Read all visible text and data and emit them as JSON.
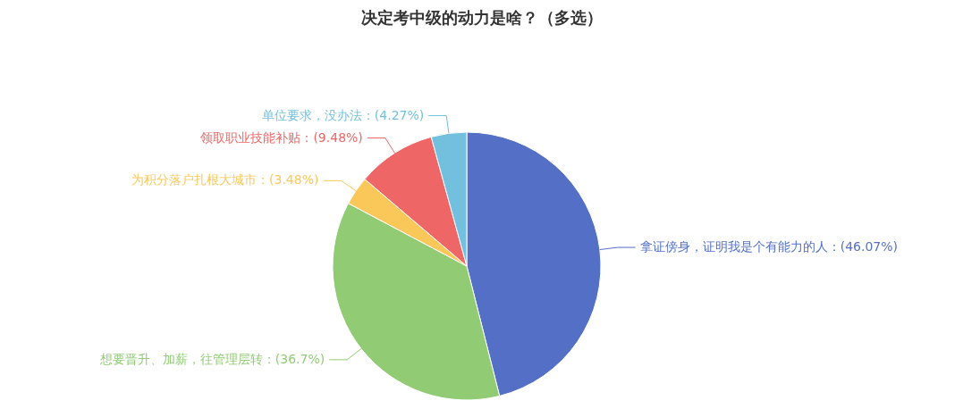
{
  "chart_data": {
    "type": "pie",
    "title": "决定考中级的动力是啥？（多选）",
    "categories": [
      "拿证傍身，证明我是个有能力的人",
      "想要晋升、加薪，往管理层转",
      "为积分落户扎根大城市",
      "领取职业技能补贴",
      "单位要求，没办法"
    ],
    "values": [
      46.07,
      36.7,
      3.48,
      9.48,
      4.27
    ],
    "value_labels": [
      "(46.07%)",
      "(36.7%)",
      "(3.48%)",
      "(9.48%)",
      "(4.27%)"
    ],
    "colors": [
      "#5470c6",
      "#91cc75",
      "#fac858",
      "#ee6666",
      "#73c0de"
    ]
  }
}
